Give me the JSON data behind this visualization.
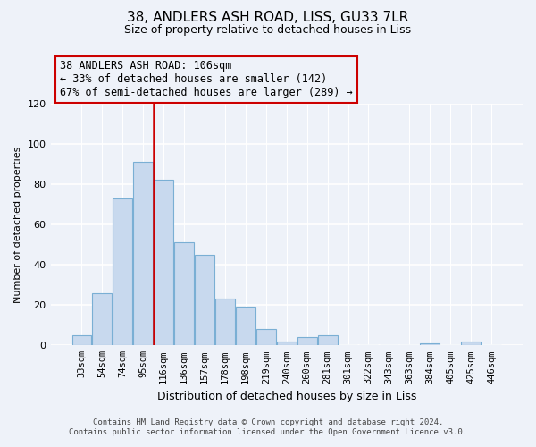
{
  "title": "38, ANDLERS ASH ROAD, LISS, GU33 7LR",
  "subtitle": "Size of property relative to detached houses in Liss",
  "xlabel": "Distribution of detached houses by size in Liss",
  "ylabel": "Number of detached properties",
  "bar_labels": [
    "33sqm",
    "54sqm",
    "74sqm",
    "95sqm",
    "116sqm",
    "136sqm",
    "157sqm",
    "178sqm",
    "198sqm",
    "219sqm",
    "240sqm",
    "260sqm",
    "281sqm",
    "301sqm",
    "322sqm",
    "343sqm",
    "363sqm",
    "384sqm",
    "405sqm",
    "425sqm",
    "446sqm"
  ],
  "bar_values": [
    5,
    26,
    73,
    91,
    82,
    51,
    45,
    23,
    19,
    8,
    2,
    4,
    5,
    0,
    0,
    0,
    0,
    1,
    0,
    2,
    0
  ],
  "bar_color": "#c8d9ee",
  "bar_edge_color": "#7aafd4",
  "vline_color": "#cc0000",
  "annotation_text": "38 ANDLERS ASH ROAD: 106sqm\n← 33% of detached houses are smaller (142)\n67% of semi-detached houses are larger (289) →",
  "annotation_box_edge_color": "#cc0000",
  "ylim": [
    0,
    120
  ],
  "yticks": [
    0,
    20,
    40,
    60,
    80,
    100,
    120
  ],
  "footer_line1": "Contains HM Land Registry data © Crown copyright and database right 2024.",
  "footer_line2": "Contains public sector information licensed under the Open Government Licence v3.0.",
  "background_color": "#eef2f9",
  "title_fontsize": 11,
  "subtitle_fontsize": 9
}
